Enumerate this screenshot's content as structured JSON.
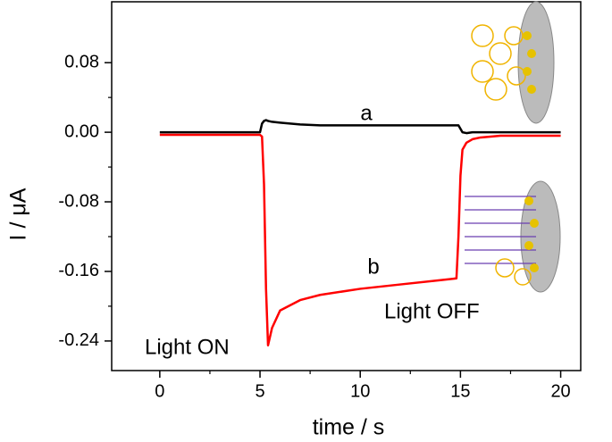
{
  "chart_data": {
    "type": "line",
    "xlabel": "time / s",
    "ylabel": "I / μA",
    "x": [
      0,
      5,
      5.1,
      5.2,
      5.3,
      5.4,
      5.6,
      6,
      7,
      8,
      10,
      12,
      14,
      14.8,
      14.9,
      15,
      15.1,
      15.3,
      15.6,
      16,
      17,
      18,
      20
    ],
    "series": [
      {
        "name": "a",
        "color": "#000000",
        "values": [
          0,
          0,
          0.01,
          0.013,
          0.014,
          0.013,
          0.012,
          0.011,
          0.009,
          0.008,
          0.008,
          0.008,
          0.008,
          0.008,
          0.008,
          0.004,
          0.0,
          -0.001,
          0.0,
          0,
          0,
          0,
          0
        ]
      },
      {
        "name": "b",
        "color": "#ff0000",
        "values": [
          -0.003,
          -0.003,
          -0.005,
          -0.06,
          -0.18,
          -0.245,
          -0.225,
          -0.205,
          -0.193,
          -0.187,
          -0.18,
          -0.175,
          -0.17,
          -0.168,
          -0.12,
          -0.05,
          -0.02,
          -0.012,
          -0.008,
          -0.006,
          -0.004,
          -0.004,
          -0.004
        ]
      }
    ],
    "annotations": [
      "a",
      "b",
      "Light ON",
      "Light OFF"
    ],
    "xlim": [
      -2.4,
      21
    ],
    "ylim": [
      -0.274,
      0.15
    ],
    "xticks": [
      0,
      5,
      10,
      15,
      20
    ],
    "yticks": [
      {
        "value": -0.24,
        "label": "-0.24"
      },
      {
        "value": -0.16,
        "label": "-0.16"
      },
      {
        "value": -0.08,
        "label": "-0.08"
      },
      {
        "value": 0.0,
        "label": "0.00"
      },
      {
        "value": 0.08,
        "label": "0.08"
      }
    ]
  }
}
